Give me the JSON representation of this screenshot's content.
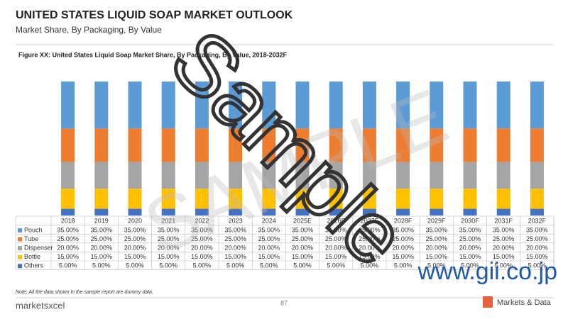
{
  "header": {
    "title": "UNITED STATES LIQUID SOAP MARKET OUTLOOK",
    "subtitle": "Market Share, By Packaging, By Value"
  },
  "chart_data": {
    "type": "bar",
    "stacked": true,
    "title": "Figure XX: United States Liquid Soap Market Share, By Packaging, By Value, 2018-2032F",
    "categories": [
      "2018",
      "2019",
      "2020",
      "2021",
      "2022",
      "2023",
      "2024",
      "2025E",
      "2026F",
      "2027F",
      "2028F",
      "2029F",
      "2030F",
      "2031F",
      "2032F"
    ],
    "ylim": [
      0,
      100
    ],
    "series": [
      {
        "name": "Pouch",
        "color": "#5b9bd5",
        "values": [
          35,
          35,
          35,
          35,
          35,
          35,
          35,
          35,
          35,
          35,
          35,
          35,
          35,
          35,
          35
        ],
        "value_labels": [
          "35.00%",
          "35.00%",
          "35.00%",
          "35.00%",
          "35.00%",
          "35.00%",
          "35.00%",
          "35.00%",
          "35.00%",
          "35.00%",
          "35.00%",
          "35.00%",
          "35.00%",
          "35.00%",
          "35.00%"
        ]
      },
      {
        "name": "Tube",
        "color": "#ed7d31",
        "values": [
          25,
          25,
          25,
          25,
          25,
          25,
          25,
          25,
          25,
          25,
          25,
          25,
          25,
          25,
          25
        ],
        "value_labels": [
          "25.00%",
          "25.00%",
          "25.00%",
          "25.00%",
          "25.00%",
          "25.00%",
          "25.00%",
          "25.00%",
          "25.00%",
          "25.00%",
          "25.00%",
          "25.00%",
          "25.00%",
          "25.00%",
          "25.00%"
        ]
      },
      {
        "name": "Dispenser",
        "color": "#a5a5a5",
        "values": [
          20,
          20,
          20,
          20,
          20,
          20,
          20,
          20,
          20,
          20,
          20,
          20,
          20,
          20,
          20
        ],
        "value_labels": [
          "20.00%",
          "20.00%",
          "20.00%",
          "20.00%",
          "20.00%",
          "20.00%",
          "20.00%",
          "20.00%",
          "20.00%",
          "20.00%",
          "20.00%",
          "20.00%",
          "20.00%",
          "20.00%",
          "20.00%"
        ]
      },
      {
        "name": "Bottle",
        "color": "#ffc000",
        "values": [
          15,
          15,
          15,
          15,
          15,
          15,
          15,
          15,
          15,
          15,
          15,
          15,
          15,
          15,
          15
        ],
        "value_labels": [
          "15.00%",
          "15.00%",
          "15.00%",
          "15.00%",
          "15.00%",
          "15.00%",
          "15.00%",
          "15.00%",
          "15.00%",
          "15.00%",
          "15.00%",
          "15.00%",
          "15.00%",
          "15.00%",
          "15.00%"
        ]
      },
      {
        "name": "Others",
        "color": "#4472c4",
        "values": [
          5,
          5,
          5,
          5,
          5,
          5,
          5,
          5,
          5,
          5,
          5,
          5,
          5,
          5,
          5
        ],
        "value_labels": [
          "5.00%",
          "5.00%",
          "5.00%",
          "5.00%",
          "5.00%",
          "5.00%",
          "5.00%",
          "5.00%",
          "5.00%",
          "5.00%",
          "5.00%",
          "5.00%",
          "5.00%",
          "5.00%",
          "5.00%"
        ]
      }
    ]
  },
  "footer": {
    "note": "Note: All the data shown in the sample report are dummy data.",
    "page": "87",
    "logo_left": "marketsxcel",
    "logo_right": "Markets & Data"
  },
  "watermarks": {
    "big": "Sample",
    "faint": "SAMPLE",
    "url": "www.gii.co.jp"
  }
}
